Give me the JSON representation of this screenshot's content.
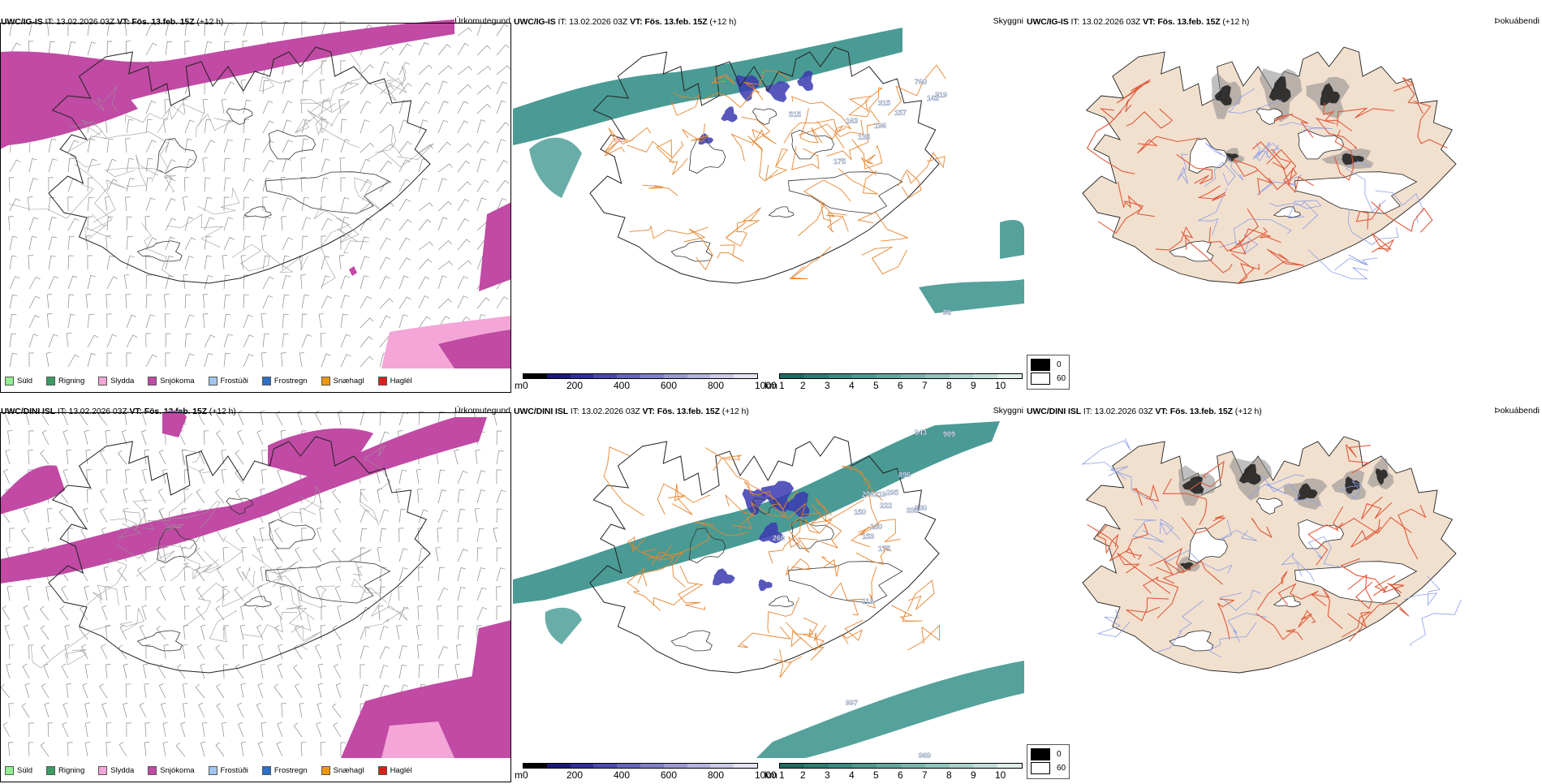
{
  "panels": [
    {
      "id": "ig-precip",
      "model": "UWC/IG-IS",
      "it_label": "IT:",
      "it_value": "13.02.2026 03Z",
      "vt_label": "VT:",
      "vt_value": "Fös. 13.feb. 15Z",
      "lead": "(+12 h)",
      "title": "Úrkomutegund"
    },
    {
      "id": "ig-ceiling",
      "model": "UWC/IG-IS",
      "it_label": "IT:",
      "it_value": "13.02.2026 03Z",
      "vt_label": "VT:",
      "vt_value": "Fös. 13.feb. 15Z",
      "lead": "(+12 h)",
      "title": "Skyggni"
    },
    {
      "id": "ig-fog",
      "model": "UWC/IG-IS",
      "it_label": "IT:",
      "it_value": "13.02.2026 03Z",
      "vt_label": "VT:",
      "vt_value": "Fös. 13.feb. 15Z",
      "lead": "(+12 h)",
      "title": "Þokuábendi"
    },
    {
      "id": "dini-precip",
      "model": "UWC/DINI ISL",
      "it_label": "IT:",
      "it_value": "13.02.2026 03Z",
      "vt_label": "VT:",
      "vt_value": "Fös. 13.feb. 15Z",
      "lead": "(+12 h)",
      "title": "Úrkomutegund"
    },
    {
      "id": "dini-ceiling",
      "model": "UWC/DINI ISL",
      "it_label": "IT:",
      "it_value": "13.02.2026 03Z",
      "vt_label": "VT:",
      "vt_value": "Fös. 13.feb. 15Z",
      "lead": "(+12 h)",
      "title": "Skyggni"
    },
    {
      "id": "dini-fog",
      "model": "UWC/DINI ISL",
      "it_label": "IT:",
      "it_value": "13.02.2026 03Z",
      "vt_label": "VT:",
      "vt_value": "Fös. 13.feb. 15Z",
      "lead": "(+12 h)",
      "title": "Þokuábendi"
    }
  ],
  "precip_legend": [
    {
      "label": "Súld",
      "color": "#90ee90"
    },
    {
      "label": "Rigning",
      "color": "#3c9a62"
    },
    {
      "label": "Slydda",
      "color": "#f3a6d7"
    },
    {
      "label": "Snjókoma",
      "color": "#c04aa4"
    },
    {
      "label": "Frostúði",
      "color": "#9ec6f0"
    },
    {
      "label": "Frostregn",
      "color": "#2f6fc7"
    },
    {
      "label": "Snæhagl",
      "color": "#f0960e"
    },
    {
      "label": "Haglél",
      "color": "#e31a1c"
    }
  ],
  "ceiling_bar": {
    "unit": "m",
    "ticks": [
      "0",
      "200",
      "400",
      "600",
      "800",
      "1000"
    ],
    "colors": [
      "#000000",
      "#1a1a7a",
      "#2f2f9a",
      "#4a4aae",
      "#6565bd",
      "#8080c8",
      "#9a9ad3",
      "#b3b3de",
      "#cccce8",
      "#e3e3f2"
    ]
  },
  "vis_bar": {
    "unit": "km",
    "ticks": [
      "1",
      "2",
      "3",
      "4",
      "5",
      "6",
      "7",
      "8",
      "9",
      "10"
    ],
    "colors": [
      "#1e6b63",
      "#2b7d74",
      "#3a8c83",
      "#4d9a91",
      "#62a79f",
      "#79b5ae",
      "#91c3bd",
      "#aad1cc",
      "#c3dfdb",
      "#e0efed"
    ]
  },
  "fog_legend": [
    {
      "label": "0",
      "color": "#000000"
    },
    {
      "label": "60",
      "color": "#ffffff"
    }
  ],
  "ceiling_labels_top": [
    "760",
    "319",
    "142",
    "315",
    "157",
    "163",
    "196",
    "135",
    "515",
    "175",
    "98"
  ],
  "ceiling_labels_bottom": [
    "943",
    "909",
    "896",
    "295",
    "219",
    "206",
    "222",
    "335",
    "330",
    "150",
    "180",
    "153",
    "175",
    "260",
    "118",
    "997",
    "969"
  ],
  "colors": {
    "snow": "#c04aa4",
    "sleet": "#f3a6d7",
    "rain": "#3c9a62",
    "teal": "#2a8a83",
    "blue_ceiling": "#3a3ab0",
    "roads": "#e8852e",
    "fog_land": "#f2e0cf",
    "fog_road": "#e05a3a",
    "fog_river": "#8a9de8"
  }
}
